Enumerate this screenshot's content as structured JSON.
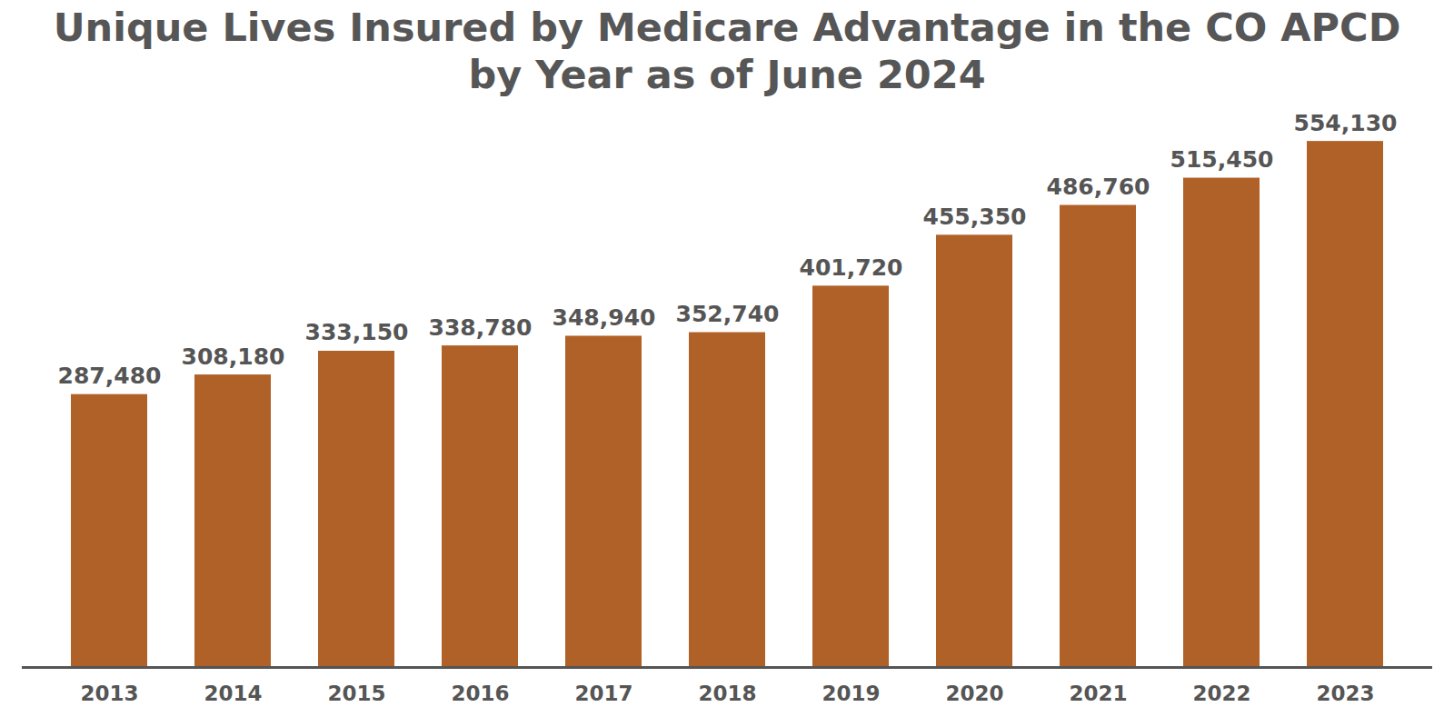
{
  "chart_data": {
    "type": "bar",
    "title": "Unique Lives Insured by Medicare Advantage in the CO APCD by Year as of June 2024",
    "categories": [
      "2013",
      "2014",
      "2015",
      "2016",
      "2017",
      "2018",
      "2019",
      "2020",
      "2021",
      "2022",
      "2023"
    ],
    "values": [
      287480,
      308180,
      333150,
      338780,
      348940,
      352740,
      401720,
      455350,
      486760,
      515450,
      554130
    ],
    "value_labels": [
      "287,480",
      "308,180",
      "333,150",
      "338,780",
      "348,940",
      "352,740",
      "401,720",
      "455,350",
      "486,760",
      "515,450",
      "554,130"
    ],
    "color": "#b06127",
    "ylim": [
      0,
      560000
    ],
    "data_labels": true,
    "tick_labels": "x",
    "grid": false
  }
}
